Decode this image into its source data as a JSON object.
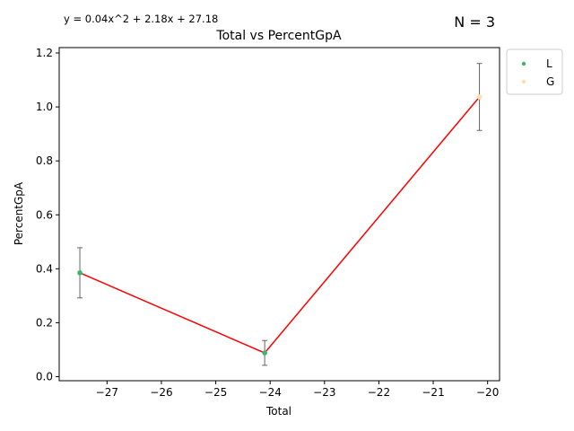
{
  "chart_data": {
    "type": "scatter",
    "title": "Total vs PercentGpA",
    "xlabel": "Total",
    "ylabel": "PercentGpA",
    "equation": "y = 0.04x^2 + 2.18x + 27.18",
    "n_label": "N = 3",
    "xlim": [
      -27.88,
      -19.78
    ],
    "ylim": [
      -0.015,
      1.22
    ],
    "x_ticks": [
      -27,
      -26,
      -25,
      -24,
      -23,
      -22,
      -21,
      -20
    ],
    "x_tick_labels": [
      "−27",
      "−26",
      "−25",
      "−24",
      "−23",
      "−22",
      "−21",
      "−20"
    ],
    "y_ticks": [
      0.0,
      0.2,
      0.4,
      0.6,
      0.8,
      1.0,
      1.2
    ],
    "y_tick_labels": [
      "0.0",
      "0.2",
      "0.4",
      "0.6",
      "0.8",
      "1.0",
      "1.2"
    ],
    "grid": false,
    "legend_position": "outside-top-right",
    "series": [
      {
        "name": "L",
        "color": "#3cb371",
        "points": [
          {
            "x": -27.5,
            "y": 0.385,
            "err": 0.093
          },
          {
            "x": -24.1,
            "y": 0.088,
            "err": 0.046
          }
        ]
      },
      {
        "name": "G",
        "color": "#ffdead",
        "points": [
          {
            "x": -20.15,
            "y": 1.037,
            "err": 0.124
          }
        ]
      }
    ],
    "fit_line": {
      "color": "#ff0000",
      "x": [
        -27.5,
        -24.1,
        -20.15
      ],
      "y": [
        0.385,
        0.088,
        1.037
      ]
    }
  }
}
